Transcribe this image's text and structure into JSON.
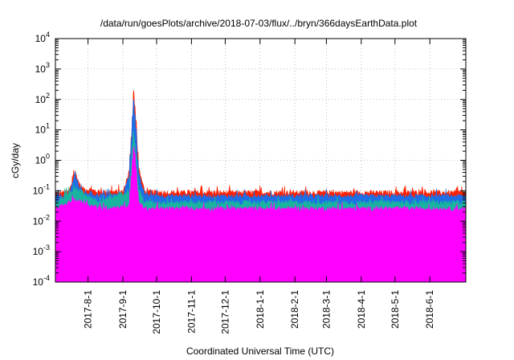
{
  "chart_data": {
    "type": "area",
    "title": "/data/run/goesPlots/archive/2018-07-03/flux/../bryn/366daysEarthData.plot",
    "xlabel": "Coordinated Universal Time (UTC)",
    "ylabel": "cGy/day",
    "yscale": "log",
    "ylim": [
      0.0001,
      10000
    ],
    "xlim": [
      "2017-07-03",
      "2018-07-03"
    ],
    "grid": true,
    "x_ticks": [
      "2017-8-1",
      "2017-9-1",
      "2017-10-1",
      "2017-11-1",
      "2017-12-1",
      "2018-1-1",
      "2018-2-1",
      "2018-3-1",
      "2018-4-1",
      "2018-5-1",
      "2018-6-1"
    ],
    "y_ticks": [
      {
        "value": 0.0001,
        "base": "10",
        "exp": "-4"
      },
      {
        "value": 0.001,
        "base": "10",
        "exp": "-3"
      },
      {
        "value": 0.01,
        "base": "10",
        "exp": "-2"
      },
      {
        "value": 0.1,
        "base": "10",
        "exp": "-1"
      },
      {
        "value": 1,
        "base": "10",
        "exp": "0"
      },
      {
        "value": 10,
        "base": "10",
        "exp": "1"
      },
      {
        "value": 100,
        "base": "10",
        "exp": "2"
      },
      {
        "value": 1000,
        "base": "10",
        "exp": "3"
      },
      {
        "value": 10000,
        "base": "10",
        "exp": "4"
      }
    ],
    "series": [
      {
        "color": "#ff2000",
        "x": [
          "2017-07-03",
          "2017-07-15",
          "2017-07-20",
          "2017-07-25",
          "2017-08-10",
          "2017-09-01",
          "2017-09-06",
          "2017-09-08",
          "2017-09-10",
          "2017-09-12",
          "2017-09-15",
          "2017-09-20",
          "2017-10-15",
          "2018-01-01",
          "2018-04-01",
          "2018-07-03"
        ],
        "y": [
          0.08,
          0.09,
          0.4,
          0.12,
          0.09,
          0.09,
          0.4,
          5,
          200,
          20,
          0.5,
          0.09,
          0.085,
          0.085,
          0.085,
          0.085
        ]
      },
      {
        "color": "#1e6ee6",
        "x": [
          "2017-07-03",
          "2017-07-15",
          "2017-07-20",
          "2017-07-25",
          "2017-08-10",
          "2017-09-01",
          "2017-09-06",
          "2017-09-08",
          "2017-09-10",
          "2017-09-12",
          "2017-09-15",
          "2017-09-20",
          "2017-10-15",
          "2018-01-01",
          "2018-04-01",
          "2018-07-03"
        ],
        "y": [
          0.065,
          0.07,
          0.35,
          0.09,
          0.07,
          0.07,
          0.3,
          4,
          100,
          10,
          0.3,
          0.07,
          0.065,
          0.065,
          0.065,
          0.065
        ]
      },
      {
        "color": "#19b4a0",
        "x": [
          "2017-07-03",
          "2017-07-20",
          "2017-08-10",
          "2017-09-06",
          "2017-09-10",
          "2017-09-15",
          "2017-09-20",
          "2018-07-03"
        ],
        "y": [
          0.04,
          0.12,
          0.04,
          0.1,
          8,
          0.1,
          0.04,
          0.04
        ]
      },
      {
        "color": "#ff00ff",
        "x": [
          "2017-07-03",
          "2017-07-20",
          "2017-08-10",
          "2017-09-06",
          "2017-09-10",
          "2017-09-15",
          "2017-09-20",
          "2018-07-03"
        ],
        "y": [
          0.025,
          0.05,
          0.025,
          0.03,
          3,
          0.04,
          0.025,
          0.025
        ]
      }
    ],
    "floor_value": 0.004
  }
}
